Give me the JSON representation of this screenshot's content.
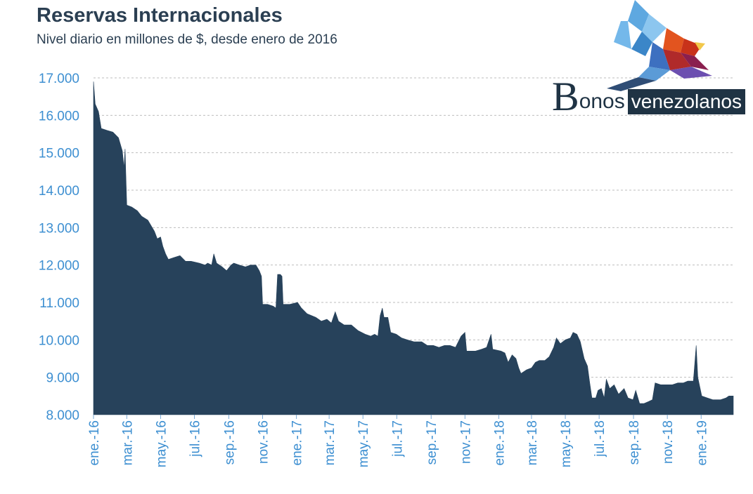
{
  "header": {
    "title": "Reservas Internacionales",
    "subtitle": "Nivel diario en millones de $, desde enero de 2016"
  },
  "logo": {
    "brand_initial": "B",
    "brand_rest": "onos",
    "brand_tag": "venezolanos",
    "icon": "parrot-icon"
  },
  "colors": {
    "area": "#27425b",
    "tick": "#3d8fd1",
    "grid": "#bdbdbd",
    "title": "#2b3f52"
  },
  "chart_data": {
    "type": "area",
    "title": "Reservas Internacionales",
    "subtitle": "Nivel diario en millones de $, desde enero de 2016",
    "ylim": [
      8000,
      17000
    ],
    "yticks": [
      "8.000",
      "9.000",
      "10.000",
      "11.000",
      "12.000",
      "13.000",
      "14.000",
      "15.000",
      "16.000",
      "17.000"
    ],
    "xticks": [
      "ene.-16",
      "mar.-16",
      "may.-16",
      "jul.-16",
      "sep.-16",
      "nov.-16",
      "ene.-17",
      "mar.-17",
      "may.-17",
      "jul.-17",
      "sep.-17",
      "nov.-17",
      "ene.-18",
      "mar.-18",
      "may.-18",
      "jul.-18",
      "sep.-18",
      "nov.-18",
      "ene.-19"
    ],
    "xlim": [
      "2016-01-01",
      "2019-02-28"
    ],
    "grid": true,
    "series": [
      {
        "values": [
          [
            "2016-01-01",
            16900
          ],
          [
            "2016-01-04",
            16300
          ],
          [
            "2016-01-10",
            16100
          ],
          [
            "2016-01-15",
            15650
          ],
          [
            "2016-01-25",
            15600
          ],
          [
            "2016-02-05",
            15550
          ],
          [
            "2016-02-15",
            15400
          ],
          [
            "2016-02-22",
            15050
          ],
          [
            "2016-02-25",
            14600
          ],
          [
            "2016-02-27",
            15100
          ],
          [
            "2016-03-01",
            13600
          ],
          [
            "2016-03-10",
            13550
          ],
          [
            "2016-03-20",
            13450
          ],
          [
            "2016-03-28",
            13300
          ],
          [
            "2016-04-08",
            13200
          ],
          [
            "2016-04-20",
            12900
          ],
          [
            "2016-04-25",
            12700
          ],
          [
            "2016-05-01",
            12750
          ],
          [
            "2016-05-05",
            12500
          ],
          [
            "2016-05-10",
            12300
          ],
          [
            "2016-05-15",
            12150
          ],
          [
            "2016-05-25",
            12200
          ],
          [
            "2016-06-05",
            12250
          ],
          [
            "2016-06-15",
            12100
          ],
          [
            "2016-06-25",
            12100
          ],
          [
            "2016-07-10",
            12050
          ],
          [
            "2016-07-20",
            12000
          ],
          [
            "2016-07-25",
            12050
          ],
          [
            "2016-08-01",
            12000
          ],
          [
            "2016-08-05",
            12300
          ],
          [
            "2016-08-10",
            12050
          ],
          [
            "2016-08-20",
            11950
          ],
          [
            "2016-08-28",
            11850
          ],
          [
            "2016-09-05",
            12000
          ],
          [
            "2016-09-10",
            12050
          ],
          [
            "2016-09-20",
            12000
          ],
          [
            "2016-10-01",
            11950
          ],
          [
            "2016-10-10",
            12000
          ],
          [
            "2016-10-20",
            12000
          ],
          [
            "2016-10-26",
            11850
          ],
          [
            "2016-10-30",
            11700
          ],
          [
            "2016-11-01",
            10950
          ],
          [
            "2016-11-10",
            10950
          ],
          [
            "2016-11-20",
            10900
          ],
          [
            "2016-11-25",
            10850
          ],
          [
            "2016-11-28",
            11750
          ],
          [
            "2016-12-03",
            11750
          ],
          [
            "2016-12-06",
            11700
          ],
          [
            "2016-12-08",
            10950
          ],
          [
            "2016-12-20",
            10950
          ],
          [
            "2017-01-03",
            11000
          ],
          [
            "2017-01-10",
            10850
          ],
          [
            "2017-01-20",
            10700
          ],
          [
            "2017-02-05",
            10600
          ],
          [
            "2017-02-15",
            10500
          ],
          [
            "2017-02-25",
            10550
          ],
          [
            "2017-03-05",
            10450
          ],
          [
            "2017-03-12",
            10750
          ],
          [
            "2017-03-18",
            10500
          ],
          [
            "2017-03-28",
            10400
          ],
          [
            "2017-04-10",
            10400
          ],
          [
            "2017-04-22",
            10250
          ],
          [
            "2017-05-05",
            10150
          ],
          [
            "2017-05-15",
            10100
          ],
          [
            "2017-05-22",
            10150
          ],
          [
            "2017-05-28",
            10100
          ],
          [
            "2017-06-01",
            10650
          ],
          [
            "2017-06-05",
            10850
          ],
          [
            "2017-06-08",
            10600
          ],
          [
            "2017-06-15",
            10600
          ],
          [
            "2017-06-20",
            10200
          ],
          [
            "2017-06-30",
            10150
          ],
          [
            "2017-07-10",
            10050
          ],
          [
            "2017-07-20",
            10000
          ],
          [
            "2017-08-01",
            9950
          ],
          [
            "2017-08-15",
            9950
          ],
          [
            "2017-08-25",
            9850
          ],
          [
            "2017-09-05",
            9850
          ],
          [
            "2017-09-15",
            9800
          ],
          [
            "2017-09-25",
            9850
          ],
          [
            "2017-10-05",
            9850
          ],
          [
            "2017-10-15",
            9800
          ],
          [
            "2017-10-25",
            10100
          ],
          [
            "2017-11-01",
            10200
          ],
          [
            "2017-11-04",
            9700
          ],
          [
            "2017-11-20",
            9700
          ],
          [
            "2017-12-01",
            9750
          ],
          [
            "2017-12-10",
            9800
          ],
          [
            "2017-12-18",
            10150
          ],
          [
            "2017-12-21",
            9750
          ],
          [
            "2018-01-05",
            9700
          ],
          [
            "2018-01-12",
            9650
          ],
          [
            "2018-01-18",
            9400
          ],
          [
            "2018-01-25",
            9600
          ],
          [
            "2018-02-01",
            9500
          ],
          [
            "2018-02-06",
            9250
          ],
          [
            "2018-02-10",
            9100
          ],
          [
            "2018-02-20",
            9200
          ],
          [
            "2018-03-01",
            9250
          ],
          [
            "2018-03-08",
            9400
          ],
          [
            "2018-03-15",
            9450
          ],
          [
            "2018-03-25",
            9450
          ],
          [
            "2018-04-02",
            9550
          ],
          [
            "2018-04-10",
            9800
          ],
          [
            "2018-04-15",
            10050
          ],
          [
            "2018-04-22",
            9900
          ],
          [
            "2018-05-01",
            10000
          ],
          [
            "2018-05-10",
            10050
          ],
          [
            "2018-05-15",
            10200
          ],
          [
            "2018-05-22",
            10150
          ],
          [
            "2018-05-28",
            9950
          ],
          [
            "2018-06-04",
            9500
          ],
          [
            "2018-06-10",
            9300
          ],
          [
            "2018-06-14",
            8850
          ],
          [
            "2018-06-18",
            8450
          ],
          [
            "2018-06-25",
            8450
          ],
          [
            "2018-06-29",
            8650
          ],
          [
            "2018-07-05",
            8700
          ],
          [
            "2018-07-10",
            8450
          ],
          [
            "2018-07-14",
            8950
          ],
          [
            "2018-07-20",
            8700
          ],
          [
            "2018-07-28",
            8800
          ],
          [
            "2018-08-05",
            8550
          ],
          [
            "2018-08-15",
            8700
          ],
          [
            "2018-08-22",
            8450
          ],
          [
            "2018-08-31",
            8400
          ],
          [
            "2018-09-05",
            8650
          ],
          [
            "2018-09-12",
            8300
          ],
          [
            "2018-09-20",
            8300
          ],
          [
            "2018-09-28",
            8350
          ],
          [
            "2018-10-05",
            8400
          ],
          [
            "2018-10-10",
            8850
          ],
          [
            "2018-10-20",
            8800
          ],
          [
            "2018-11-01",
            8800
          ],
          [
            "2018-11-10",
            8800
          ],
          [
            "2018-11-20",
            8850
          ],
          [
            "2018-11-30",
            8850
          ],
          [
            "2018-12-08",
            8900
          ],
          [
            "2018-12-18",
            8900
          ],
          [
            "2018-12-23",
            9850
          ],
          [
            "2018-12-26",
            9000
          ],
          [
            "2019-01-02",
            8500
          ],
          [
            "2019-01-12",
            8450
          ],
          [
            "2019-01-22",
            8400
          ],
          [
            "2019-02-05",
            8400
          ],
          [
            "2019-02-15",
            8450
          ],
          [
            "2019-02-20",
            8500
          ],
          [
            "2019-02-28",
            8500
          ]
        ]
      }
    ]
  }
}
